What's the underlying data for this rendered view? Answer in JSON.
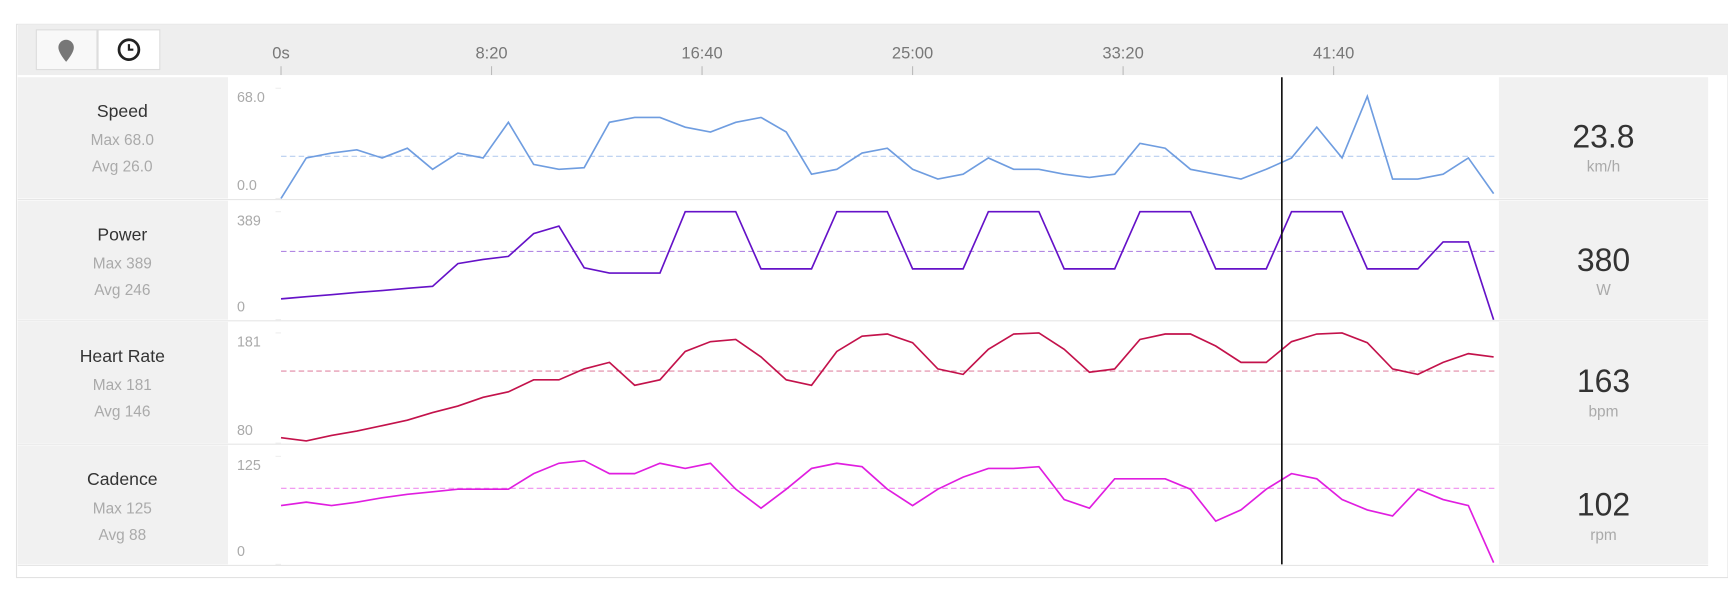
{
  "chart_data": [
    {
      "type": "line",
      "title": "Speed",
      "max": {
        "value": 68,
        "label": "Max 68.0"
      },
      "avg": {
        "value": 26,
        "label": "Avg 26.0"
      },
      "readout": 23.8,
      "unit": "km/h",
      "color": "#6f9de0",
      "ylim": [
        0,
        68
      ],
      "yticks": [
        {
          "value": 0,
          "label": "0.0"
        },
        {
          "value": 68,
          "label": "68.0"
        }
      ],
      "xlim": [
        0,
        2887
      ],
      "cursor": 2377,
      "xticks": [
        {
          "value": 0,
          "label": "0s"
        },
        {
          "value": 500,
          "label": "8:20"
        },
        {
          "value": 1000,
          "label": "16:40"
        },
        {
          "value": 1500,
          "label": "25:00"
        },
        {
          "value": 2000,
          "label": "33:20"
        },
        {
          "value": 2500,
          "label": "41:40"
        }
      ],
      "x": [
        0,
        60,
        120,
        180,
        240,
        300,
        360,
        420,
        480,
        540,
        600,
        660,
        720,
        780,
        840,
        900,
        960,
        1020,
        1080,
        1140,
        1200,
        1260,
        1320,
        1380,
        1440,
        1500,
        1560,
        1620,
        1680,
        1740,
        1800,
        1860,
        1920,
        1980,
        2040,
        2100,
        2160,
        2220,
        2280,
        2340,
        2400,
        2460,
        2520,
        2580,
        2640,
        2700,
        2760,
        2820,
        2880
      ],
      "values": [
        0,
        25,
        28,
        30,
        25,
        31,
        18,
        28,
        25,
        47,
        21,
        18,
        19,
        47,
        50,
        50,
        44,
        41,
        47,
        50,
        41,
        15,
        18,
        28,
        31,
        18,
        12,
        15,
        25,
        18,
        18,
        15,
        13,
        15,
        34,
        31,
        18,
        15,
        12,
        18,
        25,
        44,
        25,
        63,
        12,
        12,
        15,
        25,
        3
      ]
    },
    {
      "type": "line",
      "title": "Power",
      "max": {
        "value": 389,
        "label": "Max 389"
      },
      "avg": {
        "value": 246,
        "label": "Avg 246"
      },
      "readout": 380,
      "unit": "W",
      "color": "#6512c8",
      "ylim": [
        0,
        389
      ],
      "yticks": [
        0,
        389
      ],
      "xlim": [
        0,
        2887
      ],
      "x": [
        0,
        60,
        120,
        180,
        240,
        300,
        360,
        420,
        480,
        540,
        600,
        660,
        720,
        780,
        840,
        900,
        960,
        1020,
        1080,
        1140,
        1200,
        1260,
        1320,
        1380,
        1440,
        1500,
        1560,
        1620,
        1680,
        1740,
        1800,
        1860,
        1920,
        1980,
        2040,
        2100,
        2160,
        2220,
        2280,
        2340,
        2400,
        2460,
        2520,
        2580,
        2640,
        2700,
        2760,
        2820,
        2880
      ],
      "values": [
        75,
        83,
        90,
        98,
        105,
        113,
        120,
        202,
        217,
        228,
        310,
        337,
        187,
        168,
        168,
        168,
        389,
        389,
        389,
        183,
        183,
        183,
        389,
        389,
        389,
        183,
        183,
        183,
        389,
        389,
        389,
        183,
        183,
        183,
        389,
        389,
        389,
        183,
        183,
        183,
        389,
        389,
        389,
        183,
        183,
        183,
        280,
        280,
        0
      ]
    },
    {
      "type": "line",
      "title": "Heart Rate",
      "max": {
        "value": 181,
        "label": "Max 181"
      },
      "avg": {
        "value": 146,
        "label": "Avg 146"
      },
      "readout": 163,
      "unit": "bpm",
      "color": "#c3124b",
      "ylim": [
        80,
        181
      ],
      "yticks": [
        80,
        181
      ],
      "xlim": [
        0,
        2887
      ],
      "x": [
        0,
        60,
        120,
        180,
        240,
        300,
        360,
        420,
        480,
        540,
        600,
        660,
        720,
        780,
        840,
        900,
        960,
        1020,
        1080,
        1140,
        1200,
        1260,
        1320,
        1380,
        1440,
        1500,
        1560,
        1620,
        1680,
        1740,
        1800,
        1860,
        1920,
        1980,
        2040,
        2100,
        2160,
        2220,
        2280,
        2340,
        2400,
        2460,
        2520,
        2580,
        2640,
        2700,
        2760,
        2820,
        2880
      ],
      "values": [
        85,
        82,
        87,
        91,
        96,
        101,
        108,
        114,
        122,
        127,
        138,
        138,
        148,
        154,
        133,
        138,
        164,
        173,
        175,
        159,
        138,
        133,
        164,
        178,
        180,
        172,
        148,
        143,
        166,
        180,
        181,
        166,
        145,
        148,
        175,
        180,
        180,
        169,
        154,
        154,
        173,
        180,
        181,
        172,
        148,
        143,
        154,
        162,
        159
      ]
    },
    {
      "type": "line",
      "title": "Cadence",
      "max": {
        "value": 125,
        "label": "Max 125"
      },
      "avg": {
        "value": 88,
        "label": "Avg 88"
      },
      "readout": 102,
      "unit": "rpm",
      "color": "#e01ee0",
      "ylim": [
        0,
        125
      ],
      "yticks": [
        0,
        125
      ],
      "xlim": [
        0,
        2887
      ],
      "x": [
        0,
        60,
        120,
        180,
        240,
        300,
        360,
        420,
        480,
        540,
        600,
        660,
        720,
        780,
        840,
        900,
        960,
        1020,
        1080,
        1140,
        1200,
        1260,
        1320,
        1380,
        1440,
        1500,
        1560,
        1620,
        1680,
        1740,
        1800,
        1860,
        1920,
        1980,
        2040,
        2100,
        2160,
        2220,
        2280,
        2340,
        2400,
        2460,
        2520,
        2580,
        2640,
        2700,
        2760,
        2820,
        2880
      ],
      "values": [
        68,
        72,
        68,
        72,
        77,
        81,
        84,
        87,
        87,
        87,
        105,
        117,
        120,
        105,
        105,
        117,
        111,
        117,
        87,
        65,
        87,
        111,
        117,
        113,
        87,
        68,
        87,
        101,
        111,
        111,
        113,
        75,
        65,
        99,
        99,
        99,
        87,
        50,
        63,
        87,
        105,
        99,
        75,
        63,
        56,
        87,
        75,
        68,
        2
      ]
    }
  ]
}
